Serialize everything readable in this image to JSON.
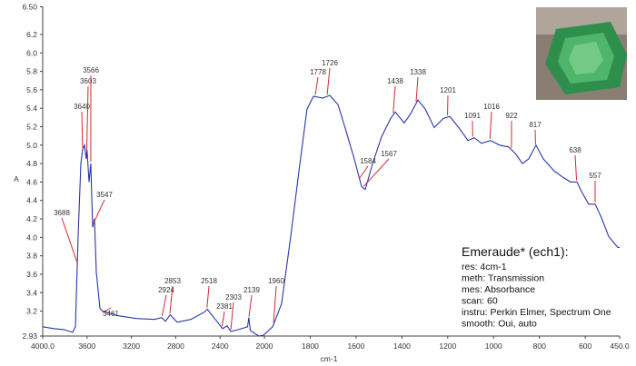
{
  "chart_data": {
    "type": "line",
    "x_label": "cm-1",
    "y_label": "A",
    "color": "#2a36a8",
    "peak_color": "#d42a2a",
    "xlim": [
      4000,
      450
    ],
    "x_scale_break": 2000,
    "xticks": [
      {
        "value": 4000,
        "label": "4000.0"
      },
      3600,
      3200,
      2800,
      2400,
      2000,
      1800,
      1600,
      1400,
      1200,
      1000,
      800,
      600,
      {
        "value": 450,
        "label": "450.0"
      }
    ],
    "ylim": [
      2.93,
      6.5
    ],
    "yticks": [
      2.93,
      3.2,
      3.4,
      3.6,
      3.8,
      {
        "value": 4,
        "label": "4.0"
      },
      4.2,
      4.4,
      4.6,
      4.8,
      {
        "value": 5,
        "label": "5.0"
      },
      5.2,
      5.4,
      5.6,
      5.8,
      {
        "value": 6,
        "label": "6.0"
      },
      6.2,
      {
        "value": 6.5,
        "label": "6.50"
      }
    ],
    "x": [
      4000,
      3895,
      3810,
      3730,
      3705,
      3680,
      3656,
      3640,
      3623,
      3607,
      3600,
      3582,
      3566,
      3549,
      3533,
      3516,
      3484,
      3459,
      3320,
      3156,
      2992,
      2926,
      2893,
      2850,
      2787,
      2664,
      2541,
      2515,
      2443,
      2377,
      2336,
      2303,
      2234,
      2152,
      2140,
      2127,
      2050,
      2008,
      1964,
      1925,
      1885,
      1845,
      1814,
      1786,
      1746,
      1715,
      1679,
      1648,
      1608,
      1576,
      1560,
      1528,
      1489,
      1449,
      1429,
      1390,
      1362,
      1330,
      1298,
      1259,
      1219,
      1191,
      1152,
      1112,
      1084,
      1053,
      1013,
      974,
      934,
      902,
      874,
      847,
      815,
      783,
      736,
      696,
      664,
      636,
      617,
      585,
      557,
      529,
      498,
      458,
      450
    ],
    "values": [
      3.03,
      3.01,
      3.0,
      2.97,
      3.03,
      4.02,
      4.8,
      4.95,
      5.0,
      4.85,
      4.95,
      4.6,
      4.8,
      4.11,
      4.2,
      3.62,
      3.23,
      3.2,
      3.15,
      3.12,
      3.11,
      3.13,
      3.09,
      3.16,
      3.08,
      3.11,
      3.19,
      3.22,
      3.11,
      3.01,
      3.04,
      2.98,
      3.0,
      3.03,
      3.13,
      2.99,
      2.93,
      2.94,
      3.03,
      3.28,
      4.01,
      4.8,
      5.39,
      5.53,
      5.51,
      5.54,
      5.44,
      5.19,
      4.85,
      4.55,
      4.52,
      4.8,
      5.09,
      5.29,
      5.36,
      5.24,
      5.34,
      5.49,
      5.39,
      5.19,
      5.29,
      5.31,
      5.19,
      5.05,
      5.08,
      5.02,
      5.05,
      5.0,
      4.98,
      4.9,
      4.8,
      4.85,
      5.0,
      4.85,
      4.72,
      4.65,
      4.6,
      4.6,
      4.5,
      4.36,
      4.36,
      4.21,
      4.01,
      3.89,
      3.89
    ],
    "peaks": [
      3688,
      3640,
      3603,
      3566,
      3547,
      3461,
      2924,
      2853,
      2518,
      2381,
      2303,
      2139,
      1960,
      1778,
      1726,
      1584,
      1567,
      1438,
      1338,
      1201,
      1091,
      1016,
      922,
      817,
      638,
      557
    ],
    "info_title": "Emeraude* (ech1):",
    "info_lines": [
      "res: 4cm-1",
      "meth: Transmission",
      "mes: Absorbance",
      "scan: 60",
      "instru: Perkin Elmer, Spectrum One",
      "smooth: Oui, auto"
    ]
  }
}
